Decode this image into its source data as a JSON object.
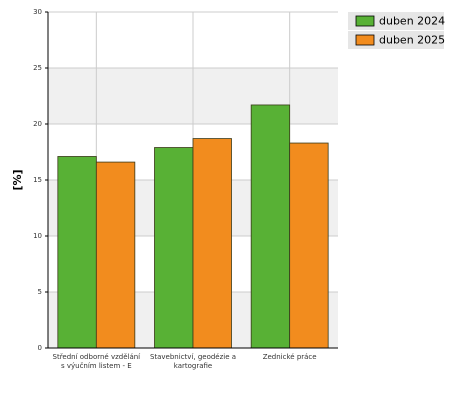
{
  "chart_data": {
    "type": "bar",
    "y_label": "[%]",
    "categories": [
      "Střední odborné vzdělání s výučním listem - E",
      "Stavebnictví, geodézie a kartografie",
      "Zednické práce"
    ],
    "series": [
      {
        "name": "duben 2024",
        "color": "#58b135",
        "values": [
          17.1,
          17.9,
          21.7
        ]
      },
      {
        "name": "duben 2025",
        "color": "#f28c1e",
        "values": [
          16.6,
          18.7,
          18.3
        ]
      }
    ],
    "ylim": [
      0,
      30
    ],
    "yticks": [
      0,
      5,
      10,
      15,
      20,
      25,
      30
    ],
    "grid": true,
    "legend": "top-right"
  }
}
